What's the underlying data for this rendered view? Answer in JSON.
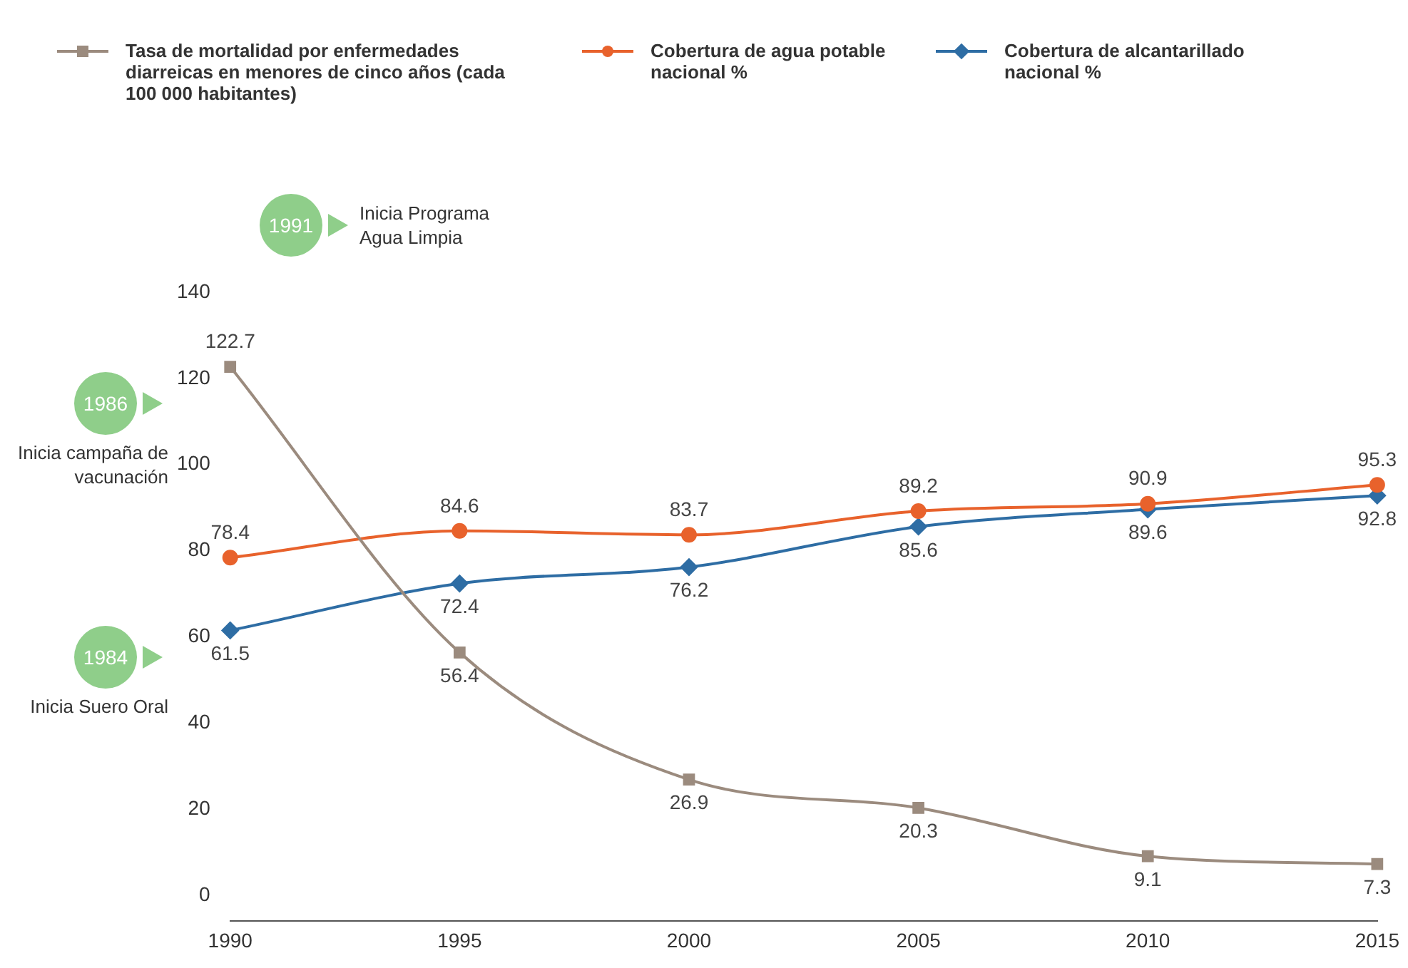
{
  "chart_data": {
    "type": "line",
    "categories": [
      "1990",
      "1995",
      "2000",
      "2005",
      "2010",
      "2015"
    ],
    "series": [
      {
        "name": "Tasa de mortalidad por enfermedades diarreicas en menores de cinco años (cada 100 000 habitantes)",
        "color": "#9b8b7e",
        "marker": "square",
        "values": [
          122.7,
          56.4,
          26.9,
          20.3,
          9.1,
          7.3
        ]
      },
      {
        "name": "Cobertura de agua potable nacional %",
        "color": "#e8622c",
        "marker": "circle",
        "values": [
          78.4,
          84.6,
          83.7,
          89.2,
          90.9,
          95.3
        ]
      },
      {
        "name": "Cobertura de alcantarillado nacional %",
        "color": "#2e6da4",
        "marker": "diamond",
        "values": [
          61.5,
          72.4,
          76.2,
          85.6,
          89.6,
          92.8
        ]
      }
    ],
    "ylim": [
      -6,
      140
    ],
    "yticks": [
      0,
      20,
      40,
      60,
      80,
      100,
      120,
      140
    ],
    "grid": false,
    "legend": "top",
    "data_labels": true,
    "line_style": "solid",
    "annotations": [
      "1991",
      "Inicia Programa Agua Limpia",
      "1986",
      "Inicia campaña de vacunación",
      "1984",
      "Inicia Suero Oral"
    ]
  }
}
